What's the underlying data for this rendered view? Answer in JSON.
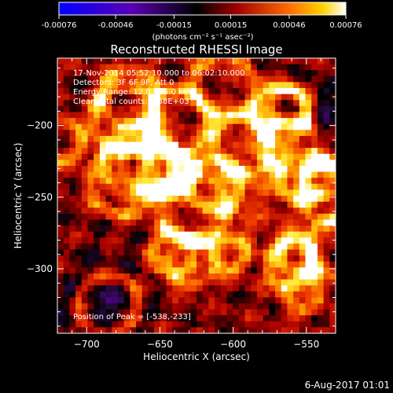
{
  "colorbar": {
    "ticks": [
      "-0.00076",
      "-0.00046",
      "-0.00015",
      "0.00015",
      "0.00046",
      "0.00076"
    ],
    "unit_label": "(photons cm⁻² s⁻¹ asec⁻²)",
    "range": [
      -0.00076,
      0.00076
    ]
  },
  "chart_data": {
    "type": "heatmap",
    "title": "Reconstructed RHESSI Image",
    "xlabel": "Heliocentric X (arcsec)",
    "ylabel": "Heliocentric Y (arcsec)",
    "xlim": [
      -720,
      -530
    ],
    "ylim": [
      -345,
      -153
    ],
    "x_ticks": [
      -700,
      -650,
      -600,
      -550
    ],
    "y_ticks": [
      -200,
      -250,
      -300
    ],
    "x_tick_labels": [
      "−700",
      "−650",
      "−600",
      "−550"
    ],
    "y_tick_labels": [
      "−200",
      "−250",
      "−300"
    ],
    "peak": [
      -538,
      -233
    ],
    "annotations": [
      "17-Nov-2014 05:52:10.000 to 06:02:10.000",
      "Detectors: 3F 6F 9F, Att 0",
      "Energy Range: 12.0 - 25.0 keV",
      "Clean    Total counts: 9.58E+03",
      "Position of Peak = [-538,-233]"
    ]
  },
  "footer": {
    "date": "6-Aug-2017 01:01"
  }
}
